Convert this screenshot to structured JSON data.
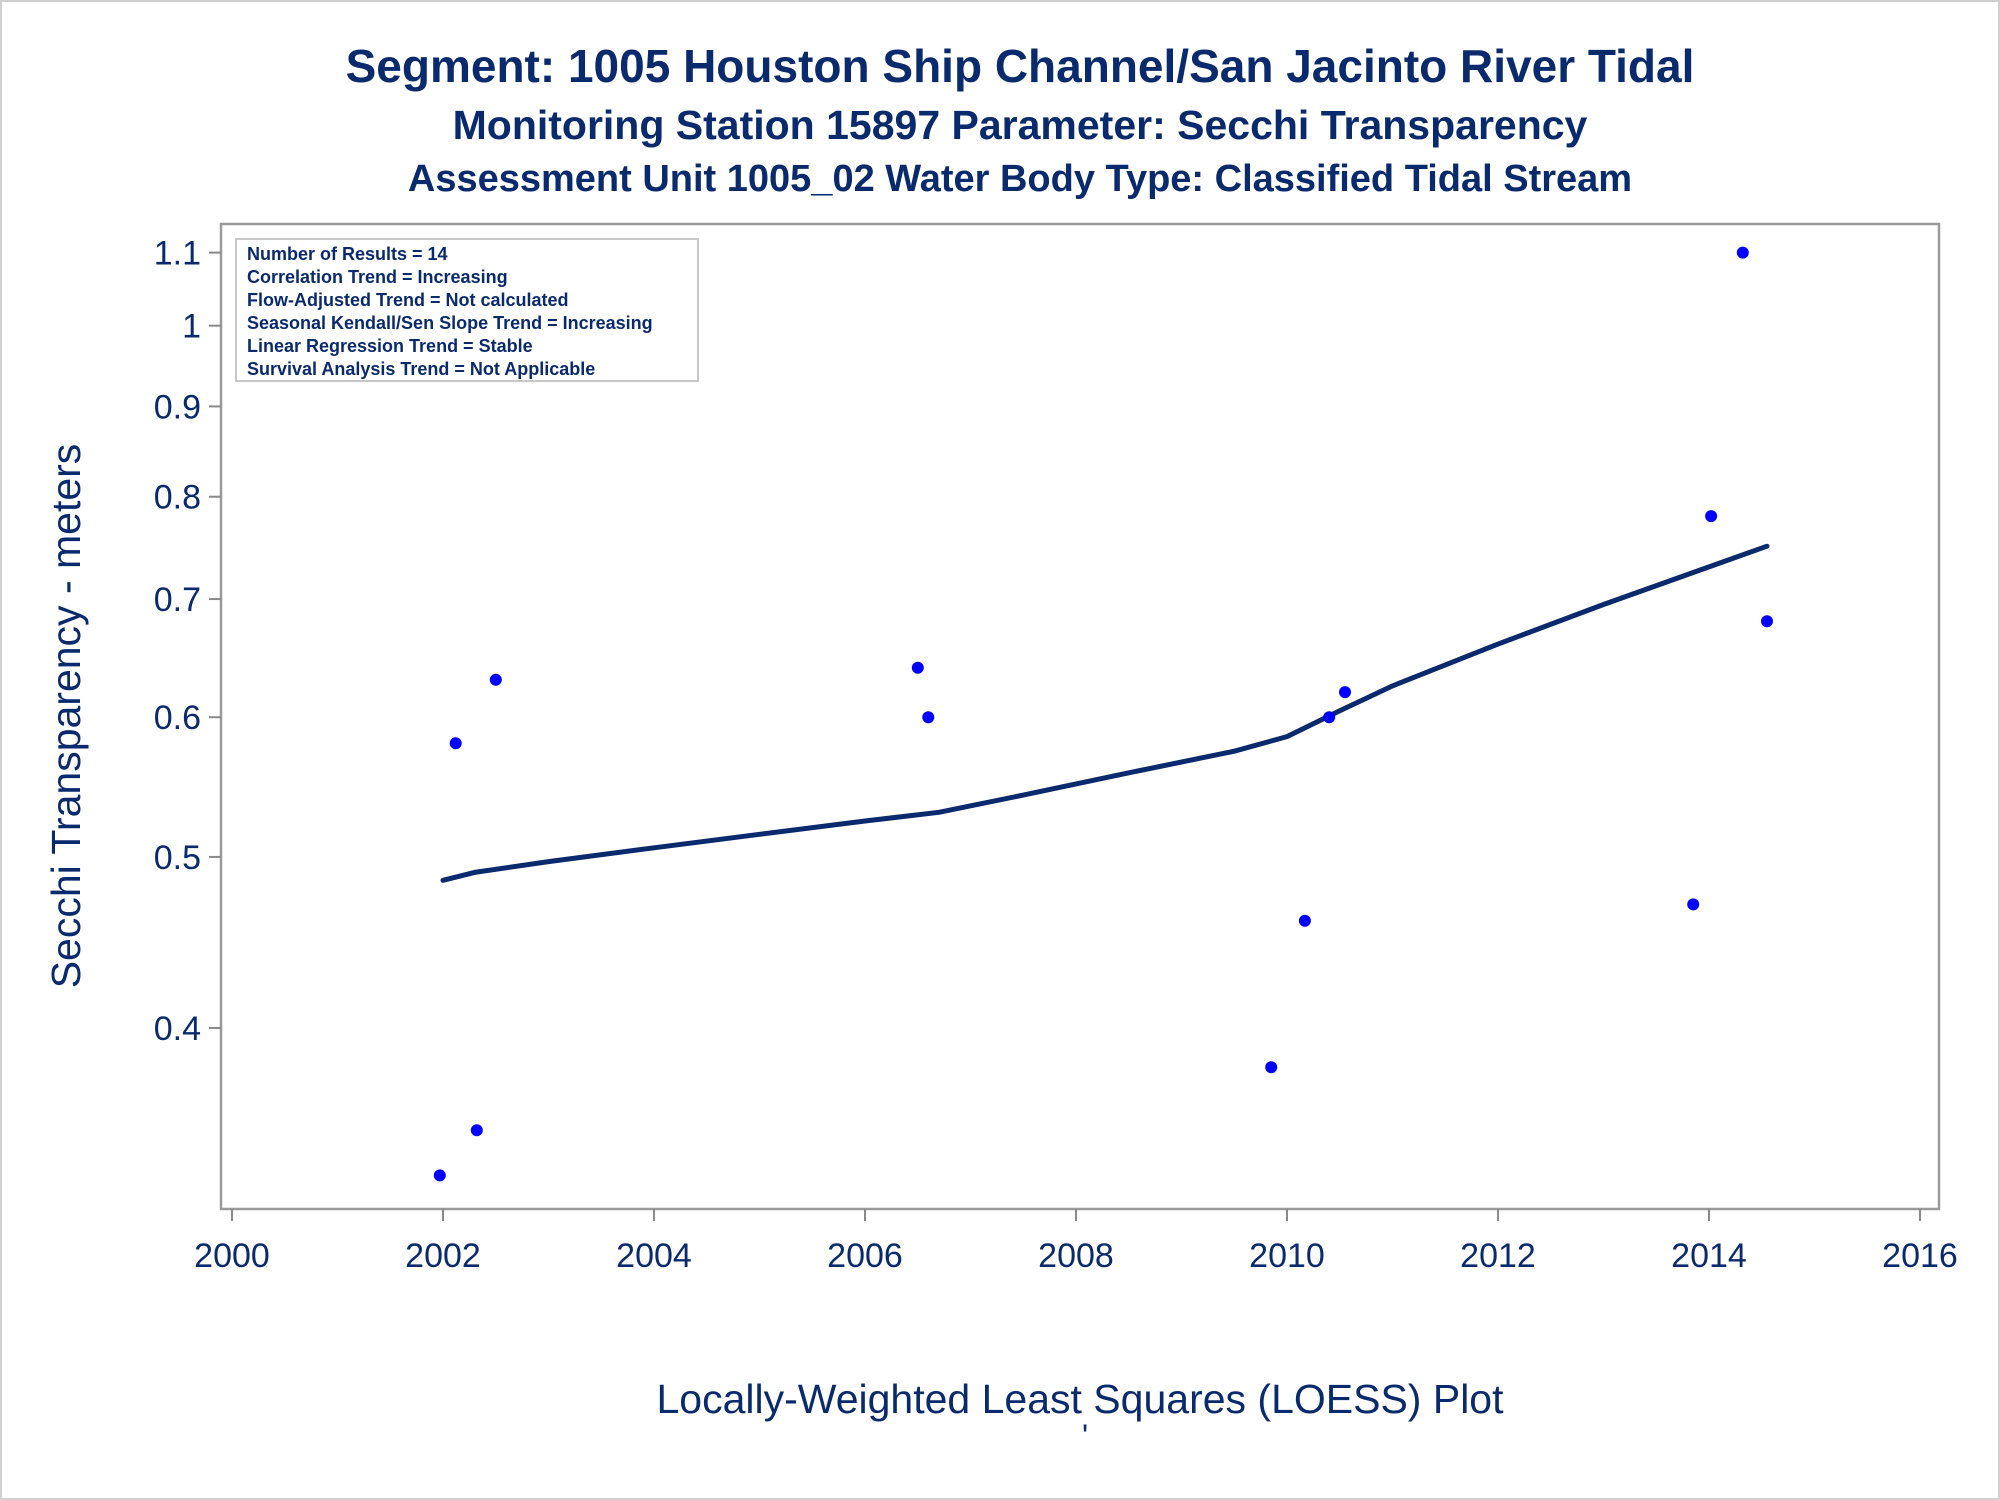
{
  "chart_data": {
    "type": "scatter",
    "title": "Segment: 1005  Houston Ship Channel/San Jacinto River Tidal",
    "subtitle": "Monitoring Station 15897 Parameter: Secchi Transparency",
    "subtitle2": "Assessment Unit 1005_02   Water Body Type: Classified Tidal Stream",
    "xlabel": "Locally-Weighted Least Squares (LOESS) Plot",
    "ylabel": "Secchi Transparency - meters",
    "footnote": "'",
    "xlim": [
      2000,
      2016
    ],
    "ylim": [
      0.32,
      1.13
    ],
    "y_scale": "log",
    "x_ticks": [
      "2000",
      "2002",
      "2004",
      "2006",
      "2008",
      "2010",
      "2012",
      "2014",
      "2016"
    ],
    "y_ticks": [
      "0.4",
      "0.5",
      "0.6",
      "0.7",
      "0.8",
      "0.9",
      "1",
      "1.1"
    ],
    "grid": false,
    "legend_box": {
      "placement": "top-left",
      "lines": [
        "Number of Results = 14",
        "Correlation Trend = Increasing",
        "Flow-Adjusted Trend = Not calculated",
        "Seasonal Kendall/Sen Slope Trend = Increasing",
        "Linear Regression Trend = Stable",
        "Survival Analysis Trend = Not Applicable"
      ]
    },
    "series": [
      {
        "kind": "points",
        "color": "#0000ff",
        "x": [
          2001.97,
          2002.12,
          2002.32,
          2002.5,
          2006.5,
          2006.6,
          2009.85,
          2010.17,
          2010.4,
          2010.55,
          2013.85,
          2014.02,
          2014.32,
          2014.55
        ],
        "y": [
          0.33,
          0.58,
          0.35,
          0.63,
          0.64,
          0.6,
          0.38,
          0.46,
          0.6,
          0.62,
          0.47,
          0.78,
          1.1,
          0.68
        ]
      },
      {
        "kind": "loess-line",
        "color": "#0a2a6e",
        "x": [
          2002.0,
          2002.3,
          2003.0,
          2004.0,
          2005.0,
          2006.0,
          2006.7,
          2007.5,
          2008.5,
          2009.5,
          2010.0,
          2010.5,
          2011.0,
          2012.0,
          2013.0,
          2014.0,
          2014.55
        ],
        "y": [
          0.485,
          0.49,
          0.497,
          0.506,
          0.515,
          0.524,
          0.53,
          0.542,
          0.558,
          0.574,
          0.585,
          0.605,
          0.625,
          0.66,
          0.695,
          0.73,
          0.75
        ]
      }
    ]
  }
}
